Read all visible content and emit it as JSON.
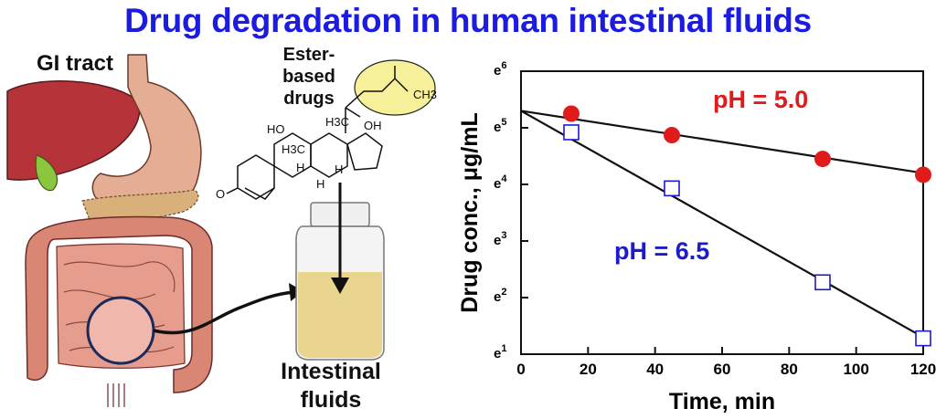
{
  "title": "Drug degradation in human intestinal fluids",
  "colors": {
    "title": "#1c1ce0",
    "ph50": "#e01b1b",
    "ph65": "#1c1cc8"
  },
  "illustration": {
    "gi_label": "GI tract",
    "drug_label_line1": "Ester-based",
    "drug_label_line2": "drugs",
    "vial_label_line1": "Intestinal",
    "vial_label_line2": "fluids",
    "molecule_text": {
      "ch3_ester": "CH3",
      "oh_top": "OH",
      "ho_left": "HO",
      "h3c_a": "H3C",
      "h3c_b": "H3C",
      "h_1": "H",
      "h_2": "H",
      "h_3": "H",
      "o": "O"
    }
  },
  "chart_data": {
    "type": "scatter",
    "title": "",
    "xlabel": "Time, min",
    "ylabel": "Drug conc., μg/mL",
    "xlim": [
      0,
      120
    ],
    "ylim": [
      1,
      6
    ],
    "log_scale_base": "e",
    "x_ticks": [
      "0",
      "20",
      "40",
      "60",
      "80",
      "100",
      "120"
    ],
    "y_ticks": [
      "e1",
      "e2",
      "e3",
      "e4",
      "e5",
      "e6"
    ],
    "grid": false,
    "series": [
      {
        "name": "pH = 5.0",
        "marker": "filled-circle",
        "color": "#e01b1b",
        "x": [
          15,
          45,
          90,
          120
        ],
        "y": [
          5.25,
          4.87,
          4.45,
          4.17
        ],
        "fit_line": {
          "x": [
            0,
            120
          ],
          "y": [
            5.3,
            4.2
          ]
        }
      },
      {
        "name": "pH = 6.5",
        "marker": "open-square",
        "color": "#1c1cc8",
        "x": [
          15,
          45,
          90,
          120
        ],
        "y": [
          4.92,
          3.93,
          2.27,
          1.28
        ],
        "fit_line": {
          "x": [
            0,
            120
          ],
          "y": [
            5.3,
            1.3
          ]
        }
      }
    ]
  }
}
